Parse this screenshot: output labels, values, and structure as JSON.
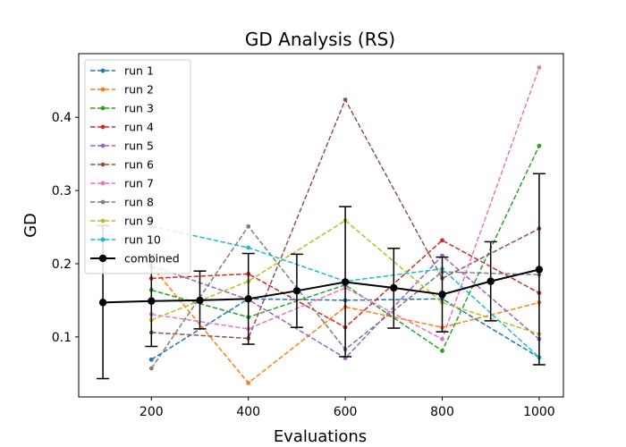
{
  "chart_data": {
    "type": "line",
    "title": "GD Analysis (RS)",
    "xlabel": "Evaluations",
    "ylabel": "GD",
    "xlim": [
      50,
      1050
    ],
    "ylim": [
      0.018,
      0.487
    ],
    "x_ticks": [
      200,
      400,
      600,
      800,
      1000
    ],
    "y_ticks": [
      0.1,
      0.2,
      0.3,
      0.4
    ],
    "legend_position": "top-left",
    "grid": false,
    "x": [
      200,
      400,
      600,
      800,
      1000
    ],
    "series": [
      {
        "name": "run 1",
        "color": "#1f77b4",
        "values": [
          0.069,
          0.152,
          0.15,
          0.152,
          0.072
        ]
      },
      {
        "name": "run 2",
        "color": "#ff7f0e",
        "values": [
          0.197,
          0.037,
          0.141,
          0.113,
          0.147
        ]
      },
      {
        "name": "run 3",
        "color": "#2ca02c",
        "values": [
          0.164,
          0.127,
          0.171,
          0.081,
          0.361
        ]
      },
      {
        "name": "run 4",
        "color": "#d62728",
        "values": [
          0.18,
          0.186,
          0.113,
          0.232,
          0.16
        ]
      },
      {
        "name": "run 5",
        "color": "#9467bd",
        "values": [
          0.197,
          0.151,
          0.071,
          0.211,
          0.097
        ]
      },
      {
        "name": "run 6",
        "color": "#8c564b",
        "values": [
          0.106,
          0.098,
          0.424,
          0.18,
          0.248
        ]
      },
      {
        "name": "run 7",
        "color": "#e377c2",
        "values": [
          0.131,
          0.111,
          0.167,
          0.097,
          0.468
        ]
      },
      {
        "name": "run 8",
        "color": "#7f7f7f",
        "values": [
          0.057,
          0.251,
          0.083,
          0.189,
          0.185
        ]
      },
      {
        "name": "run 9",
        "color": "#bcbd22",
        "values": [
          0.123,
          0.176,
          0.259,
          0.147,
          0.104
        ]
      },
      {
        "name": "run 10",
        "color": "#17becf",
        "values": [
          0.251,
          0.222,
          0.176,
          0.193,
          0.072
        ]
      }
    ],
    "combined": {
      "name": "combined",
      "color": "#000000",
      "x": [
        100,
        200,
        300,
        400,
        500,
        600,
        700,
        800,
        900,
        1000
      ],
      "values": [
        0.147,
        0.149,
        0.15,
        0.152,
        0.163,
        0.175,
        0.167,
        0.158,
        0.176,
        0.192
      ],
      "err_lower": [
        0.043,
        0.087,
        0.111,
        0.09,
        0.113,
        0.073,
        0.112,
        0.107,
        0.122,
        0.062
      ],
      "err_upper": [
        0.252,
        0.211,
        0.19,
        0.214,
        0.213,
        0.278,
        0.221,
        0.209,
        0.23,
        0.323
      ]
    }
  }
}
